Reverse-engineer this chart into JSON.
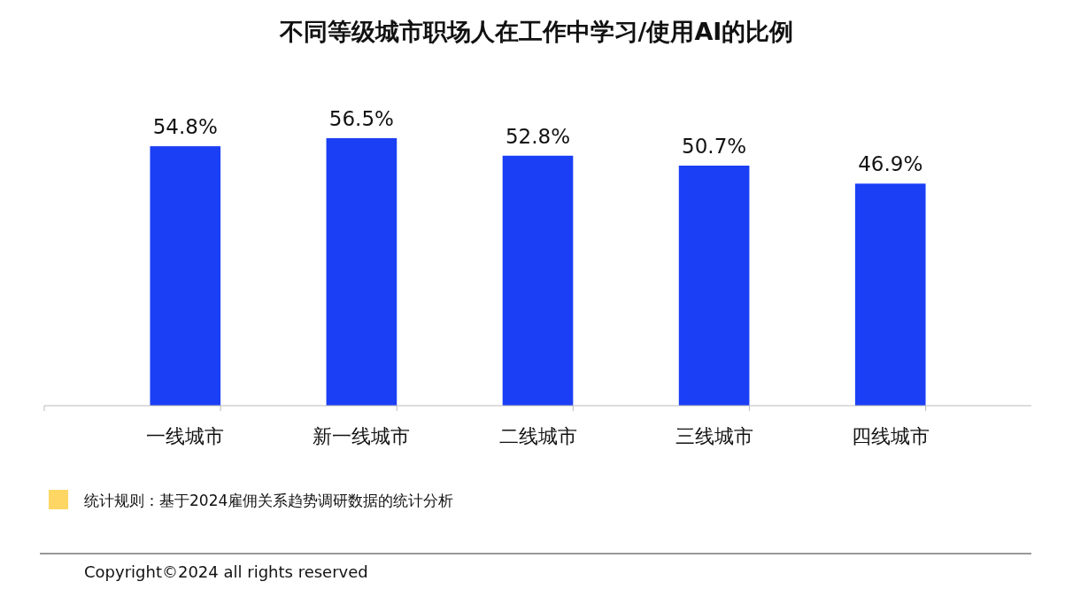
{
  "chart_data": {
    "type": "bar",
    "title": "不同等级城市职场人在工作中学习/使用AI的比例",
    "categories": [
      "一线城市",
      "新一线城市",
      "二线城市",
      "三线城市",
      "四线城市"
    ],
    "values": [
      54.8,
      56.5,
      52.8,
      50.7,
      46.9
    ],
    "color": "#1b3ff5",
    "value_labels": [
      "54.8%",
      "56.5%",
      "52.8%",
      "50.7%",
      "46.9%"
    ],
    "annotations": [
      "统计规则：基于2024雇佣关系趋势调研数据的统计分析",
      "Copyright©2024 all rights reserved"
    ]
  }
}
